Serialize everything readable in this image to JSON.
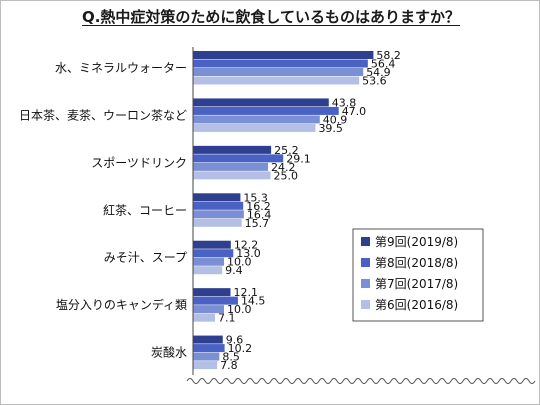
{
  "chart_data": {
    "type": "bar",
    "orientation": "horizontal",
    "title": "Q.熱中症対策のために飲食しているものはありますか？",
    "xlabel": "",
    "ylabel": "",
    "xlim": [
      0,
      70
    ],
    "grid": false,
    "legend_position": "right",
    "categories": [
      "水、ミネラルウォーター",
      "日本茶、麦茶、ウーロン茶など",
      "スポーツドリンク",
      "紅茶、コーヒー",
      "みそ汁、スープ",
      "塩分入りのキャンディ類",
      "炭酸水"
    ],
    "series": [
      {
        "name": "第9回(2019/8)",
        "color": "#2f3f8f",
        "values": [
          58.2,
          43.8,
          25.2,
          15.3,
          12.2,
          12.1,
          9.6
        ]
      },
      {
        "name": "第8回(2018/8)",
        "color": "#4a62c4",
        "values": [
          56.4,
          47.0,
          29.1,
          16.2,
          13.0,
          14.5,
          10.2
        ]
      },
      {
        "name": "第7回(2017/8)",
        "color": "#7b8fd4",
        "values": [
          54.9,
          40.9,
          24.2,
          16.4,
          10.0,
          10.0,
          8.5
        ]
      },
      {
        "name": "第6回(2016/8)",
        "color": "#b4bfe6",
        "values": [
          53.6,
          39.5,
          25.0,
          15.7,
          9.4,
          7.1,
          7.8
        ]
      }
    ]
  }
}
